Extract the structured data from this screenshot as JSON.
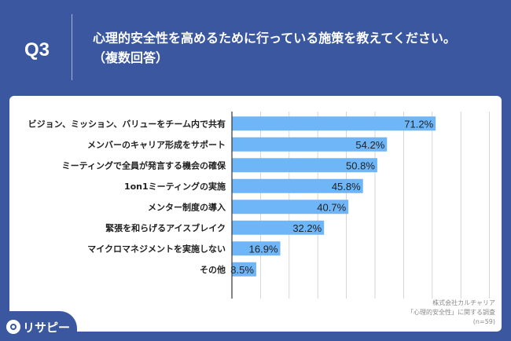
{
  "header": {
    "question": "Q3",
    "title_line1": "心理的安全性を高めるために行っている施策を教えてください。",
    "title_line2": "（複数回答）"
  },
  "source": {
    "line1": "株式会社カルチャリア",
    "line2": "「心理的安全性」に関する調査",
    "line3": "(n=59)"
  },
  "logo": {
    "text": "リサピー"
  },
  "colors": {
    "background": "#3a57a0",
    "bar": "#6eb6f7",
    "grid": "#cccccc",
    "card": "#ffffff"
  },
  "chart_data": {
    "type": "bar",
    "orientation": "horizontal",
    "categories": [
      "ビジョン、ミッション、バリューをチーム内で共有",
      "メンバーのキャリア形成をサポート",
      "ミーティングで全員が発言する機会の確保",
      "1on1ミーティングの実施",
      "メンター制度の導入",
      "緊張を和らげるアイスブレイク",
      "マイクロマネジメントを実施しない",
      "その他"
    ],
    "values": [
      71.2,
      54.2,
      50.8,
      45.8,
      40.7,
      32.2,
      16.9,
      8.5
    ],
    "value_labels": [
      "71.2%",
      "54.2%",
      "50.8%",
      "45.8%",
      "40.7%",
      "32.2%",
      "16.9%",
      "8.5%"
    ],
    "xlim": [
      0,
      100
    ],
    "grid": true
  }
}
